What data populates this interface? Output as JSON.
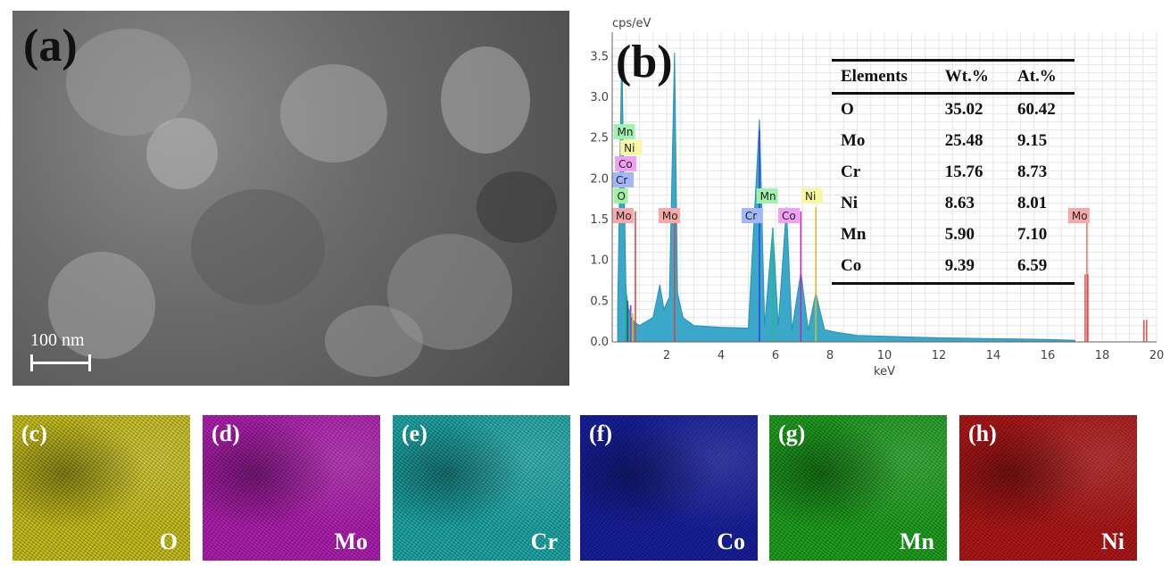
{
  "panel_a": {
    "label": "(a)",
    "scale_bar": "100 nm"
  },
  "panel_b": {
    "label": "(b)",
    "peak_tags": [
      "Mn",
      "Ni",
      "Co",
      "Cr",
      "O",
      "Mo",
      "Mo",
      "Cr",
      "Mn",
      "Co",
      "Ni",
      "Mo"
    ],
    "table": {
      "headers": [
        "Elements",
        "Wt.%",
        "At.%"
      ],
      "rows": [
        [
          "O",
          "35.02",
          "60.42"
        ],
        [
          "Mo",
          "25.48",
          "9.15"
        ],
        [
          "Cr",
          "15.76",
          "8.73"
        ],
        [
          "Ni",
          "8.63",
          "8.01"
        ],
        [
          "Mn",
          "5.90",
          "7.10"
        ],
        [
          "Co",
          "9.39",
          "6.59"
        ]
      ]
    }
  },
  "chart_data": {
    "type": "area",
    "ylabel": "cps/eV",
    "xlabel": "keV",
    "xlim": [
      0,
      20
    ],
    "ylim": [
      0,
      3.8
    ],
    "xticks": [
      "2",
      "4",
      "6",
      "8",
      "10",
      "12",
      "14",
      "16",
      "18",
      "20"
    ],
    "yticks": [
      "0.0",
      "0.5",
      "1.0",
      "1.5",
      "2.0",
      "2.5",
      "3.0",
      "3.5"
    ],
    "spectrum": {
      "x": [
        0.2,
        0.35,
        0.5,
        0.52,
        0.6,
        0.7,
        0.8,
        1.0,
        1.5,
        1.75,
        1.9,
        2.1,
        2.29,
        2.4,
        2.6,
        3,
        4,
        5,
        5.41,
        5.6,
        5.9,
        6.1,
        6.4,
        6.6,
        6.93,
        7.2,
        7.48,
        7.8,
        8.2,
        9,
        10,
        12,
        14,
        16,
        17
      ],
      "y": [
        0.4,
        3.55,
        0.7,
        0.6,
        0.4,
        0.3,
        0.25,
        0.2,
        0.3,
        0.7,
        0.4,
        0.55,
        3.55,
        0.6,
        0.3,
        0.2,
        0.18,
        0.17,
        2.73,
        0.2,
        1.4,
        0.2,
        1.65,
        0.15,
        0.85,
        0.15,
        0.6,
        0.15,
        0.12,
        0.08,
        0.07,
        0.05,
        0.04,
        0.03,
        0.02
      ]
    },
    "mo_k_lines": [
      {
        "x": 17.44,
        "y": 0.83
      },
      {
        "x": 19.6,
        "y": 0.27
      }
    ]
  },
  "maps": [
    {
      "label": "(c)",
      "element": "O",
      "color": "#c8c020"
    },
    {
      "label": "(d)",
      "element": "Mo",
      "color": "#b020b0"
    },
    {
      "label": "(e)",
      "element": "Cr",
      "color": "#20a8a8"
    },
    {
      "label": "(f)",
      "element": "Co",
      "color": "#1820a0"
    },
    {
      "label": "(g)",
      "element": "Mn",
      "color": "#20a020"
    },
    {
      "label": "(h)",
      "element": "Ni",
      "color": "#b01818"
    }
  ]
}
